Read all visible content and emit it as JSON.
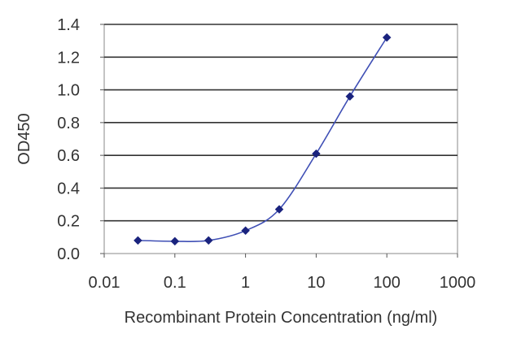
{
  "chart_data": {
    "type": "line",
    "title": "",
    "xlabel": "Recombinant Protein Concentration (ng/ml)",
    "ylabel": "OD450",
    "xscale": "log",
    "xlim": [
      0.01,
      1000
    ],
    "ylim": [
      0.0,
      1.4
    ],
    "grid": "horizontal",
    "x_ticks": [
      "0.01",
      "0.1",
      "1",
      "10",
      "100",
      "1000"
    ],
    "x_tick_values": [
      0.01,
      0.1,
      1,
      10,
      100,
      1000
    ],
    "y_ticks": [
      "0.0",
      "0.2",
      "0.4",
      "0.6",
      "0.8",
      "1.0",
      "1.2",
      "1.4"
    ],
    "y_tick_values": [
      0.0,
      0.2,
      0.4,
      0.6,
      0.8,
      1.0,
      1.2,
      1.4
    ],
    "series": [
      {
        "x": [
          0.03,
          0.1,
          0.3,
          1,
          3,
          10,
          30,
          100
        ],
        "y": [
          0.08,
          0.075,
          0.08,
          0.14,
          0.27,
          0.61,
          0.96,
          1.32
        ],
        "color": "#1a237e",
        "marker": "diamond"
      }
    ]
  }
}
